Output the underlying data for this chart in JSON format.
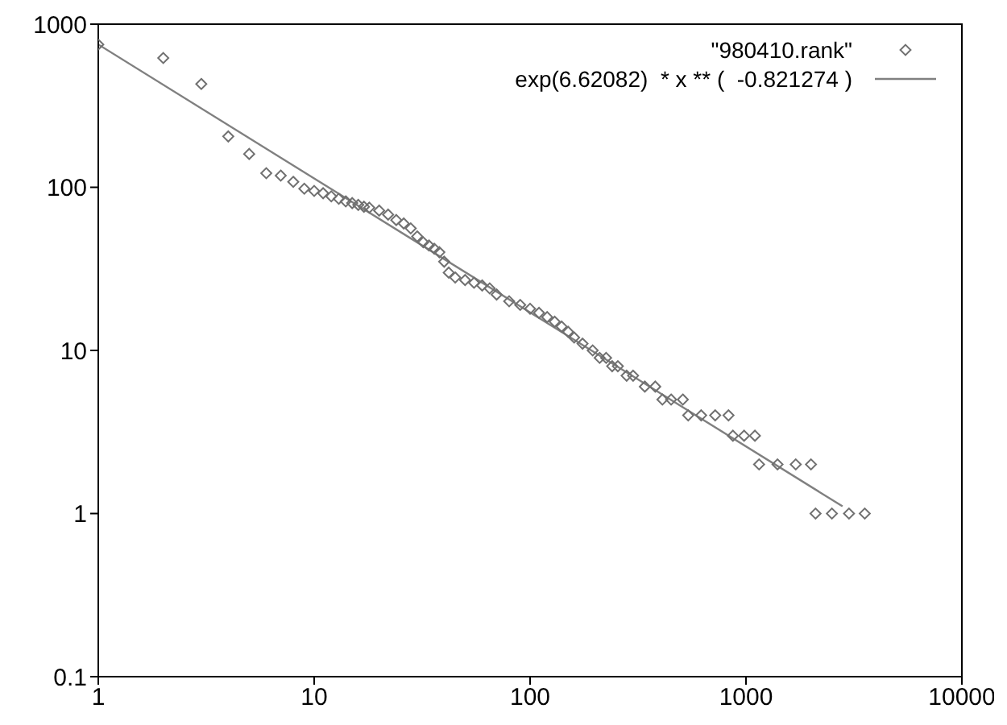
{
  "chart_data": {
    "type": "scatter",
    "log": "xy",
    "xlim": [
      1,
      10000
    ],
    "ylim": [
      0.1,
      1000
    ],
    "xticks": [
      1,
      10,
      100,
      1000,
      10000
    ],
    "yticks": [
      0.1,
      1,
      10,
      100,
      1000
    ],
    "grid": false,
    "legend": "top right",
    "marker": "diamond",
    "series": [
      {
        "name": "\"980410.rank\"",
        "color": "#707070",
        "type": "scatter",
        "x": [
          1,
          2,
          3,
          4,
          5,
          6,
          7,
          8,
          9,
          10,
          11,
          12,
          13,
          14,
          15,
          16,
          17,
          18,
          20,
          22,
          24,
          26,
          28,
          30,
          32,
          34,
          36,
          38,
          40,
          42,
          45,
          50,
          55,
          60,
          65,
          70,
          80,
          90,
          100,
          110,
          120,
          130,
          140,
          150,
          160,
          175,
          195,
          210,
          225,
          240,
          255,
          280,
          300,
          340,
          380,
          410,
          450,
          510,
          540,
          620,
          720,
          830,
          870,
          980,
          1100,
          1150,
          1400,
          1700,
          2000,
          2100,
          2500,
          3000,
          3550
        ],
        "values": [
          750,
          620,
          430,
          205,
          160,
          122,
          118,
          108,
          98,
          95,
          92,
          88,
          85,
          82,
          80,
          78,
          76,
          75,
          72,
          68,
          63,
          60,
          56,
          50,
          46,
          44,
          42,
          40,
          35,
          30,
          28,
          27,
          26,
          25,
          24,
          22,
          20,
          19,
          18,
          17,
          16,
          15,
          14,
          13,
          12,
          11,
          10,
          9,
          9,
          8,
          8,
          7,
          7,
          6,
          6,
          5,
          5,
          5,
          4,
          4,
          4,
          4,
          3,
          3,
          3,
          2,
          2,
          2,
          2,
          1,
          1,
          1,
          1
        ]
      },
      {
        "name": "exp(6.62082)  * x ** (  -0.821274 )",
        "color": "#808080",
        "type": "line",
        "marker": "none",
        "line_style": "solid",
        "x": [
          1,
          2800
        ],
        "values": [
          751,
          1.107
        ]
      }
    ]
  }
}
